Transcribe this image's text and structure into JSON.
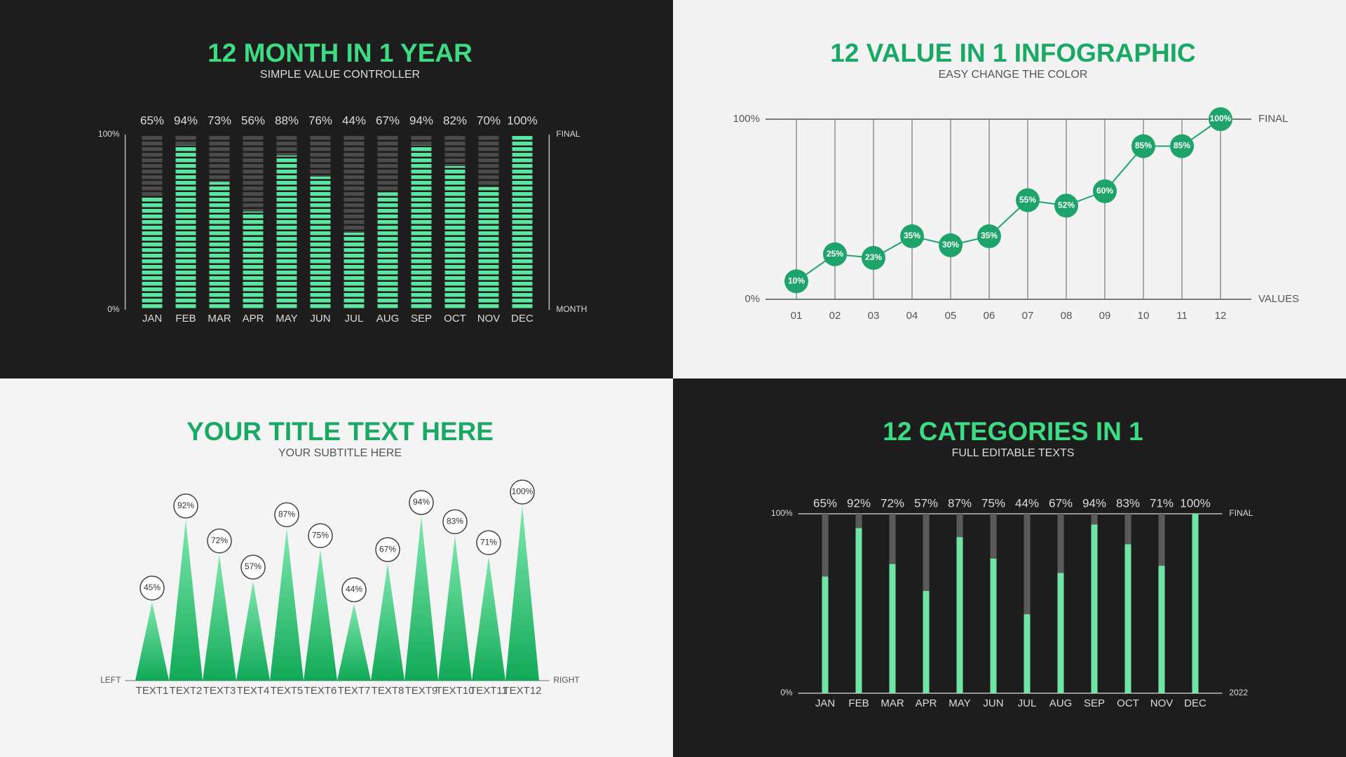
{
  "chart_data": [
    {
      "type": "bar",
      "segmented": true,
      "title": "12 MONTH IN 1 YEAR",
      "subtitle": "SIMPLE VALUE CONTROLLER",
      "categories": [
        "JAN",
        "FEB",
        "MAR",
        "APR",
        "MAY",
        "JUN",
        "JUL",
        "AUG",
        "SEP",
        "OCT",
        "NOV",
        "DEC"
      ],
      "values": [
        65,
        94,
        73,
        56,
        88,
        76,
        44,
        67,
        94,
        82,
        70,
        100
      ],
      "value_labels": [
        "65%",
        "94%",
        "73%",
        "56%",
        "88%",
        "76%",
        "44%",
        "67%",
        "94%",
        "82%",
        "70%",
        "100%"
      ],
      "ylim": [
        0,
        100
      ],
      "yticks": [
        {
          "value": 0,
          "label": "0%"
        },
        {
          "value": 100,
          "label": "100%"
        }
      ],
      "annotations": [
        "FINAL",
        "MONTH"
      ],
      "background": "#1d1d1d",
      "title_color": "#3ddc84",
      "text_color": "#dddddd",
      "color": "#5fe3a1",
      "track_color": "#4a4a4a"
    },
    {
      "type": "line",
      "title": "12 VALUE IN 1 INFOGRAPHIC",
      "subtitle": "EASY CHANGE THE COLOR",
      "categories": [
        "01",
        "02",
        "03",
        "04",
        "05",
        "06",
        "07",
        "08",
        "09",
        "10",
        "11",
        "12"
      ],
      "values": [
        10,
        25,
        23,
        35,
        30,
        35,
        55,
        52,
        60,
        85,
        85,
        100
      ],
      "value_labels": [
        "10%",
        "25%",
        "23%",
        "35%",
        "30%",
        "35%",
        "55%",
        "52%",
        "60%",
        "85%",
        "85%",
        "100%"
      ],
      "ylim": [
        0,
        100
      ],
      "yticks": [
        {
          "value": 0,
          "label": "0%"
        },
        {
          "value": 100,
          "label": "100%"
        }
      ],
      "annotations": [
        "FINAL",
        "VALUES"
      ],
      "background": "#f3f3f3",
      "title_color": "#1aa865",
      "text_color": "#555555",
      "color": "#1ea46a",
      "track_color": "#777777"
    },
    {
      "type": "spike",
      "title": "YOUR TITLE TEXT HERE",
      "subtitle": "YOUR SUBTITLE HERE",
      "categories": [
        "TEXT1",
        "TEXT2",
        "TEXT3",
        "TEXT4",
        "TEXT5",
        "TEXT6",
        "TEXT7",
        "TEXT8",
        "TEXT9",
        "TEXT10",
        "TEXT11",
        "TEXT12"
      ],
      "values": [
        45,
        92,
        72,
        57,
        87,
        75,
        44,
        67,
        94,
        83,
        71,
        100
      ],
      "value_labels": [
        "45%",
        "92%",
        "72%",
        "57%",
        "87%",
        "75%",
        "44%",
        "67%",
        "94%",
        "83%",
        "71%",
        "100%"
      ],
      "ylim": [
        0,
        100
      ],
      "annotations": [
        "LEFT",
        "RIGHT"
      ],
      "background": "#f4f4f4",
      "title_color": "#1aa865",
      "text_color": "#555555",
      "color": "#18b465",
      "track_color": "#888888"
    },
    {
      "type": "bar",
      "segmented": false,
      "title": "12 CATEGORIES IN 1",
      "subtitle": "FULL EDITABLE TEXTS",
      "categories": [
        "JAN",
        "FEB",
        "MAR",
        "APR",
        "MAY",
        "JUN",
        "JUL",
        "AUG",
        "SEP",
        "OCT",
        "NOV",
        "DEC"
      ],
      "values": [
        65,
        92,
        72,
        57,
        87,
        75,
        44,
        67,
        94,
        83,
        71,
        100
      ],
      "value_labels": [
        "65%",
        "92%",
        "72%",
        "57%",
        "87%",
        "75%",
        "44%",
        "67%",
        "94%",
        "83%",
        "71%",
        "100%"
      ],
      "ylim": [
        0,
        100
      ],
      "yticks": [
        {
          "value": 0,
          "label": "0%"
        },
        {
          "value": 100,
          "label": "100%"
        }
      ],
      "annotations": [
        "FINAL",
        "2022"
      ],
      "background": "#1d1d1d",
      "title_color": "#3ddc84",
      "text_color": "#dddddd",
      "color": "#6fe6a8",
      "track_color": "#5a5a5a"
    }
  ]
}
